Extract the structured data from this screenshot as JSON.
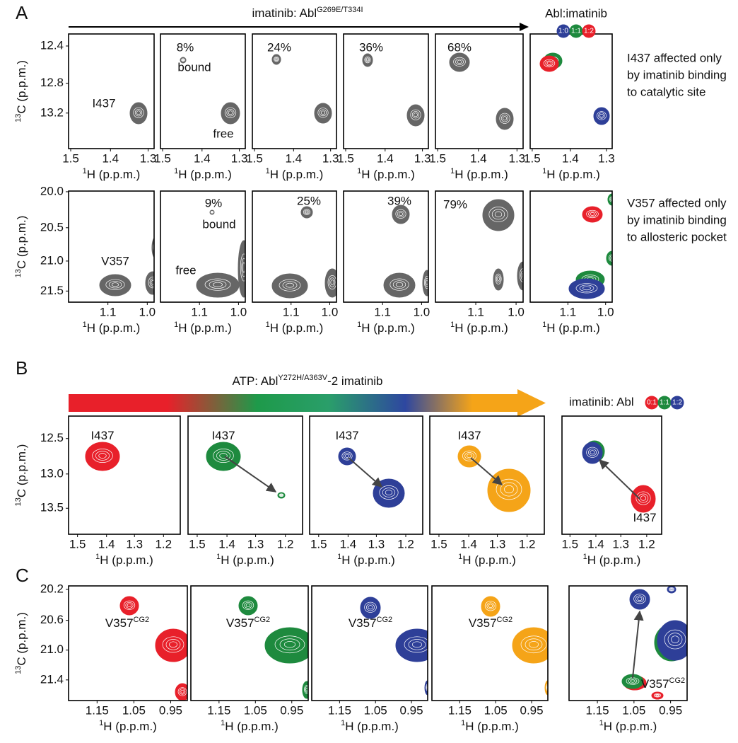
{
  "panel_a": {
    "label": "A",
    "title": "imatinib: Abl",
    "title_sup": "G269E/T334I",
    "legend_title": "Abl:imatinib",
    "legend": [
      "1:0",
      "1:1",
      "1:2"
    ],
    "rows": [
      {
        "y_axis": {
          "sup": "13",
          "label": "C (p.p.m.)",
          "ticks": [
            "12.4",
            "12.8",
            "13.2"
          ]
        },
        "x_axis": {
          "sup": "1",
          "label": "H (p.p.m.)",
          "ticks": [
            "1.5",
            "1.4",
            "1.3"
          ]
        },
        "annotations": [
          [
            "I437"
          ],
          [
            "8%",
            "bound",
            "free"
          ],
          [
            "24%"
          ],
          [
            "36%"
          ],
          [
            "68%"
          ]
        ],
        "note": [
          "I437 affected only",
          "by imatinib binding",
          "to catalytic site"
        ]
      },
      {
        "y_axis": {
          "sup": "13",
          "label": "C (p.p.m.)",
          "ticks": [
            "20.0",
            "20.5",
            "21.0",
            "21.5"
          ]
        },
        "x_axis": {
          "sup": "1",
          "label": "H (p.p.m.)",
          "ticks": [
            "1.1",
            "1.0"
          ]
        },
        "annotations": [
          [
            "V357"
          ],
          [
            "9%",
            "bound",
            "free"
          ],
          [
            "25%"
          ],
          [
            "39%"
          ],
          [
            "79%"
          ]
        ],
        "note": [
          "V357 affected only",
          "by imatinib binding",
          "to allosteric pocket"
        ]
      }
    ]
  },
  "panel_b": {
    "label": "B",
    "title": "ATP: Abl",
    "title_sup": "Y272H/A363V",
    "title_suffix": "-2 imatinib",
    "legend_title": "imatinib: Abl",
    "legend": [
      "0:1",
      "1:1",
      "1:2"
    ],
    "y_axis": {
      "sup": "13",
      "label": "C (p.p.m.)",
      "ticks": [
        "12.5",
        "13.0",
        "13.5"
      ]
    },
    "x_axis": {
      "sup": "1",
      "label": "H (p.p.m.)",
      "ticks": [
        "1.5",
        "1.4",
        "1.3",
        "1.2"
      ]
    },
    "peak_label": "I437"
  },
  "panel_c": {
    "label": "C",
    "y_axis": {
      "sup": "13",
      "label": "C (p.p.m.)",
      "ticks": [
        "20.2",
        "20.6",
        "21.0",
        "21.4"
      ]
    },
    "x_axis": {
      "sup": "1",
      "label": "H (p.p.m.)",
      "ticks": [
        "1.15",
        "1.05",
        "0.95"
      ]
    },
    "peak_label": "V357",
    "peak_label_sup": "CG2"
  }
}
